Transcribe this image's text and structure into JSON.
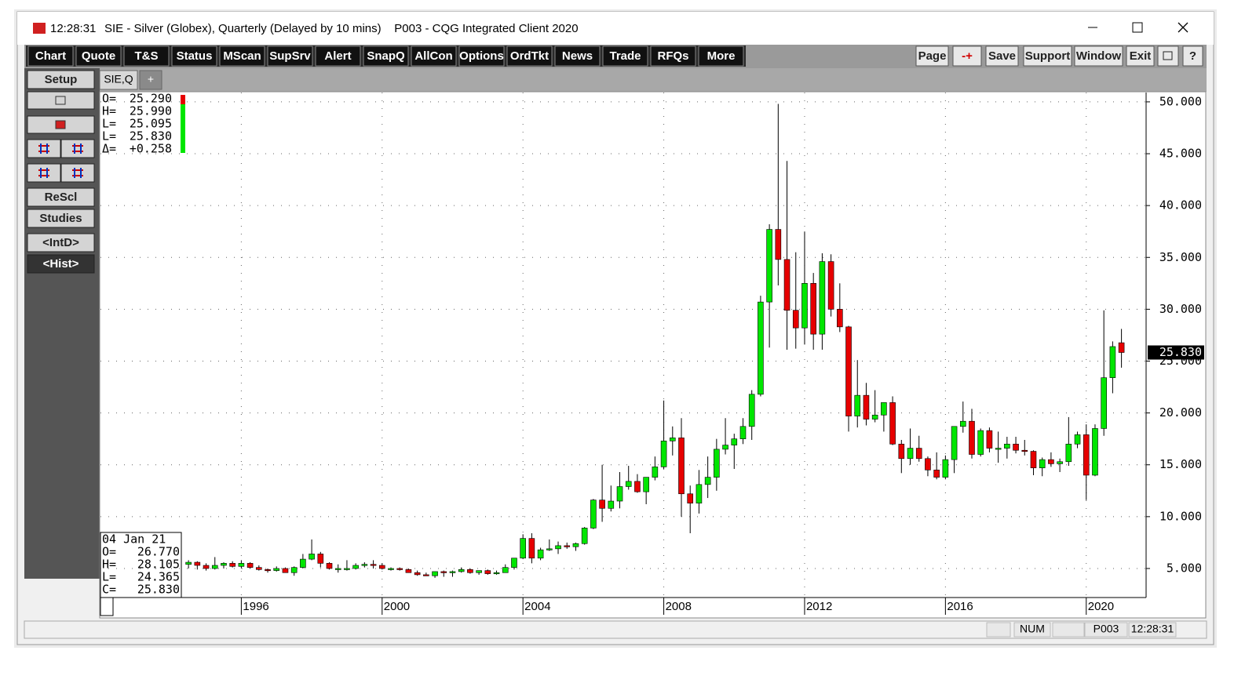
{
  "window": {
    "clock": "12:28:31",
    "title": "SIE - Silver (Globex), Quarterly (Delayed by 10 mins)    P003 - CQG Integrated Client 2020"
  },
  "toolbar": {
    "left": [
      "Chart",
      "Quote",
      "T&S",
      "Status",
      "MScan",
      "SupSrv",
      "Alert",
      "SnapQ",
      "AllCon",
      "Options",
      "OrdTkt",
      "News",
      "Trade",
      "RFQs",
      "More"
    ],
    "right": [
      "Page",
      "-+",
      "Save",
      "Support",
      "Window",
      "Exit",
      "?"
    ]
  },
  "sidebar": [
    "Setup",
    "ReScl",
    "Studies",
    "<IntD>",
    "<Hist>"
  ],
  "tabs": [
    "SIE,Q",
    "+"
  ],
  "readout_top": [
    {
      "label": "O=",
      "value": "25.290"
    },
    {
      "label": "H=",
      "value": "25.990"
    },
    {
      "label": "L=",
      "value": "25.095"
    },
    {
      "label": "L=",
      "value": "25.830"
    },
    {
      "label": "Δ=",
      "value": "+0.258"
    }
  ],
  "readout_bottom": {
    "date": "04 Jan 21",
    "lines": [
      {
        "label": "O=",
        "value": "26.770"
      },
      {
        "label": "H=",
        "value": "28.105"
      },
      {
        "label": "L=",
        "value": "24.365"
      },
      {
        "label": "C=",
        "value": "25.830"
      }
    ]
  },
  "status": [
    "NUM",
    "P003",
    "12:28:31"
  ],
  "chart_data": {
    "type": "candlestick",
    "up_color": "#00e600",
    "down_color": "#e60000",
    "grid": true,
    "xlim": [
      1992,
      2021.7
    ],
    "xticks": [
      1996,
      2000,
      2004,
      2008,
      2012,
      2016,
      2020
    ],
    "ylim": [
      2.2,
      50.9
    ],
    "yticks": [
      {
        "value": 5,
        "label": "5.000"
      },
      {
        "value": 10,
        "label": "10.000"
      },
      {
        "value": 15,
        "label": "15.000"
      },
      {
        "value": 20,
        "label": "20.000"
      },
      {
        "value": 25,
        "label": "25.000"
      },
      {
        "value": 30,
        "label": "30.000"
      },
      {
        "value": 35,
        "label": "35.000"
      },
      {
        "value": 40,
        "label": "40.000"
      },
      {
        "value": 45,
        "label": "45.000"
      },
      {
        "value": 50,
        "label": "50.000"
      }
    ],
    "last_price_label": "25.830",
    "x": [
      1994.5,
      1994.75,
      1995,
      1995.25,
      1995.5,
      1995.75,
      1996,
      1996.25,
      1996.5,
      1996.75,
      1997,
      1997.25,
      1997.5,
      1997.75,
      1998,
      1998.25,
      1998.5,
      1998.75,
      1999,
      1999.25,
      1999.5,
      1999.75,
      2000,
      2000.25,
      2000.5,
      2000.75,
      2001,
      2001.25,
      2001.5,
      2001.75,
      2002,
      2002.25,
      2002.5,
      2002.75,
      2003,
      2003.25,
      2003.5,
      2003.75,
      2004,
      2004.25,
      2004.5,
      2004.75,
      2005,
      2005.25,
      2005.5,
      2005.75,
      2006,
      2006.25,
      2006.5,
      2006.75,
      2007,
      2007.25,
      2007.5,
      2007.75,
      2008,
      2008.25,
      2008.5,
      2008.75,
      2009,
      2009.25,
      2009.5,
      2009.75,
      2010,
      2010.25,
      2010.5,
      2010.75,
      2011,
      2011.25,
      2011.5,
      2011.75,
      2012,
      2012.25,
      2012.5,
      2012.75,
      2013,
      2013.25,
      2013.5,
      2013.75,
      2014,
      2014.25,
      2014.5,
      2014.75,
      2015,
      2015.25,
      2015.5,
      2015.75,
      2016,
      2016.25,
      2016.5,
      2016.75,
      2017,
      2017.25,
      2017.5,
      2017.75,
      2018,
      2018.25,
      2018.5,
      2018.75,
      2019,
      2019.25,
      2019.5,
      2019.75,
      2020,
      2020.25,
      2020.5,
      2020.75,
      2021
    ],
    "open": [
      5.4,
      5.6,
      5.3,
      5.0,
      5.3,
      5.5,
      5.2,
      5.5,
      5.1,
      4.9,
      4.8,
      5.0,
      4.6,
      5.1,
      5.9,
      6.4,
      5.5,
      5.0,
      5.0,
      5.0,
      5.3,
      5.4,
      5.3,
      5.0,
      5.0,
      4.9,
      4.6,
      4.4,
      4.3,
      4.7,
      4.6,
      4.7,
      4.9,
      4.6,
      4.8,
      4.5,
      4.6,
      5.1,
      6.0,
      7.9,
      6.0,
      6.8,
      6.9,
      7.2,
      7.1,
      7.4,
      8.9,
      11.6,
      10.8,
      11.5,
      12.9,
      13.4,
      12.4,
      13.8,
      14.8,
      17.3,
      17.6,
      12.2,
      11.3,
      13.1,
      13.8,
      16.5,
      16.9,
      17.5,
      18.7,
      21.8,
      30.7,
      37.7,
      34.8,
      29.9,
      28.2,
      32.5,
      27.6,
      34.6,
      30.0,
      28.3,
      19.7,
      21.7,
      19.4,
      19.8,
      21.0,
      17.0,
      15.6,
      16.6,
      15.6,
      14.5,
      13.8,
      15.5,
      18.7,
      19.2,
      16.0,
      18.3,
      16.6,
      16.6,
      17.0,
      16.4,
      16.3,
      14.7,
      15.5,
      15.1,
      15.3,
      17.0,
      17.9,
      14.0,
      18.5,
      23.4,
      26.77
    ],
    "high": [
      5.8,
      5.7,
      5.5,
      6.1,
      5.6,
      5.7,
      5.8,
      5.6,
      5.3,
      5.0,
      5.2,
      5.1,
      5.2,
      6.4,
      7.8,
      6.6,
      5.6,
      5.4,
      5.8,
      5.5,
      5.6,
      5.8,
      5.5,
      5.1,
      5.1,
      5.0,
      4.8,
      4.6,
      4.7,
      4.8,
      4.8,
      5.1,
      5.0,
      4.8,
      4.9,
      4.8,
      5.4,
      6.0,
      8.3,
      8.4,
      7.0,
      7.8,
      7.6,
      7.5,
      7.5,
      9.0,
      11.7,
      15.0,
      13.0,
      14.3,
      14.9,
      14.1,
      13.8,
      15.8,
      21.2,
      18.7,
      19.5,
      13.0,
      14.5,
      15.8,
      17.5,
      19.5,
      18.0,
      19.5,
      22.2,
      31.3,
      38.2,
      49.8,
      44.3,
      35.5,
      37.5,
      33.5,
      35.4,
      35.3,
      32.5,
      28.4,
      25.1,
      22.9,
      22.2,
      21.0,
      21.6,
      17.4,
      18.5,
      17.8,
      15.8,
      16.2,
      15.9,
      18.7,
      21.1,
      20.4,
      18.5,
      18.6,
      18.2,
      17.7,
      17.7,
      17.4,
      16.4,
      15.7,
      16.2,
      15.6,
      19.6,
      18.2,
      18.9,
      18.9,
      29.9,
      26.9,
      28.105
    ],
    "low": [
      5.0,
      4.9,
      4.8,
      4.9,
      5.0,
      5.1,
      5.0,
      5.0,
      4.8,
      4.6,
      4.7,
      4.6,
      4.3,
      5.0,
      5.8,
      5.1,
      4.9,
      4.6,
      4.8,
      4.9,
      5.1,
      5.0,
      4.9,
      4.8,
      4.8,
      4.6,
      4.3,
      4.3,
      4.1,
      4.2,
      4.2,
      4.6,
      4.5,
      4.4,
      4.4,
      4.4,
      4.6,
      4.9,
      5.9,
      5.5,
      5.8,
      6.7,
      6.4,
      6.9,
      6.7,
      7.3,
      8.8,
      9.5,
      10.5,
      10.8,
      12.6,
      12.3,
      11.2,
      13.5,
      14.6,
      15.9,
      10.0,
      8.4,
      10.3,
      11.8,
      12.5,
      16.0,
      14.6,
      17.0,
      17.4,
      21.6,
      26.3,
      32.3,
      26.1,
      26.2,
      26.6,
      26.1,
      26.1,
      29.3,
      27.8,
      18.2,
      18.6,
      18.8,
      19.1,
      18.2,
      16.9,
      14.2,
      15.0,
      15.3,
      13.9,
      13.6,
      13.6,
      14.2,
      18.1,
      15.6,
      15.8,
      16.2,
      15.2,
      15.6,
      16.1,
      15.9,
      14.0,
      13.9,
      14.8,
      14.3,
      14.9,
      16.6,
      11.6,
      13.9,
      17.8,
      21.9,
      24.365
    ],
    "close": [
      5.6,
      5.3,
      5.0,
      5.3,
      5.5,
      5.2,
      5.5,
      5.1,
      4.9,
      4.8,
      5.0,
      4.6,
      5.1,
      5.9,
      6.4,
      5.5,
      5.0,
      5.0,
      5.0,
      5.3,
      5.4,
      5.3,
      5.0,
      5.0,
      4.9,
      4.6,
      4.4,
      4.3,
      4.7,
      4.6,
      4.7,
      4.9,
      4.6,
      4.8,
      4.5,
      4.6,
      5.1,
      6.0,
      7.9,
      6.0,
      6.8,
      6.9,
      7.2,
      7.1,
      7.4,
      8.9,
      11.6,
      10.8,
      11.5,
      12.9,
      13.4,
      12.4,
      13.8,
      14.8,
      17.3,
      17.6,
      12.2,
      11.3,
      13.1,
      13.8,
      16.5,
      16.9,
      17.5,
      18.7,
      21.8,
      30.7,
      37.7,
      34.8,
      29.9,
      28.2,
      32.5,
      27.6,
      34.6,
      30.0,
      28.3,
      19.7,
      21.7,
      19.4,
      19.8,
      21.0,
      17.0,
      15.6,
      16.6,
      15.6,
      14.5,
      13.8,
      15.5,
      18.7,
      19.2,
      16.0,
      18.3,
      16.6,
      16.6,
      17.0,
      16.4,
      16.3,
      14.7,
      15.5,
      15.1,
      15.3,
      17.0,
      17.9,
      14.0,
      18.5,
      23.4,
      26.4,
      25.83
    ]
  }
}
